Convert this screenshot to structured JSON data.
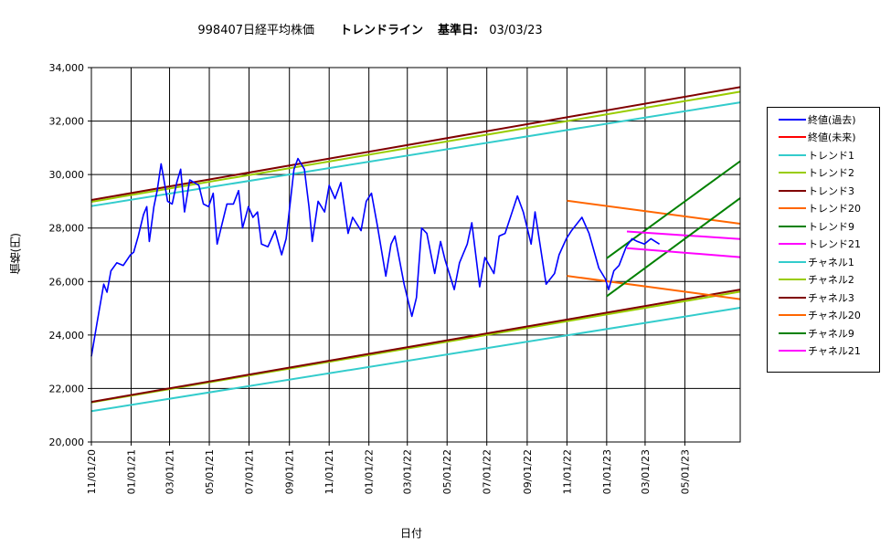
{
  "header": {
    "code_name": "998407日経平均株価",
    "title": "トレンドライン",
    "base_label": "基準日:",
    "base_date": "03/03/23"
  },
  "chart_data": {
    "type": "line",
    "title": "998407日経平均株価 トレンドライン 基準日: 03/03/23",
    "xlabel": "日付",
    "ylabel": "価格(円)",
    "ylim": [
      20000,
      34000
    ],
    "y_ticks": [
      20000,
      22000,
      24000,
      26000,
      28000,
      30000,
      32000,
      34000
    ],
    "y_tick_labels": [
      "20,000",
      "22,000",
      "24,000",
      "26,000",
      "28,000",
      "30,000",
      "32,000",
      "34,000"
    ],
    "x_range": [
      "2020-11-01",
      "2023-07-25"
    ],
    "x_ticks": [
      "2020-11-01",
      "2021-01-01",
      "2021-03-01",
      "2021-05-01",
      "2021-07-01",
      "2021-09-01",
      "2021-11-01",
      "2022-01-01",
      "2022-03-01",
      "2022-05-01",
      "2022-07-01",
      "2022-09-01",
      "2022-11-01",
      "2023-01-01",
      "2023-03-01",
      "2023-05-01"
    ],
    "x_tick_labels": [
      "11/01/20",
      "01/01/21",
      "03/01/21",
      "05/01/21",
      "07/01/21",
      "09/01/21",
      "11/01/21",
      "01/01/22",
      "03/01/22",
      "05/01/22",
      "07/01/22",
      "09/01/22",
      "11/01/22",
      "01/01/23",
      "03/01/23",
      "05/01/23"
    ],
    "grid": true,
    "legend_position": "right",
    "series": [
      {
        "name": "終値(過去)",
        "color": "#0000ff",
        "points": [
          [
            "2020-11-01",
            23200
          ],
          [
            "2020-11-10",
            24500
          ],
          [
            "2020-11-20",
            25900
          ],
          [
            "2020-11-25",
            25600
          ],
          [
            "2020-12-01",
            26400
          ],
          [
            "2020-12-10",
            26700
          ],
          [
            "2020-12-20",
            26600
          ],
          [
            "2020-12-31",
            27000
          ],
          [
            "2021-01-05",
            27100
          ],
          [
            "2021-01-12",
            27700
          ],
          [
            "2021-01-20",
            28500
          ],
          [
            "2021-01-25",
            28800
          ],
          [
            "2021-01-29",
            27500
          ],
          [
            "2021-02-05",
            28800
          ],
          [
            "2021-02-10",
            29400
          ],
          [
            "2021-02-16",
            30400
          ],
          [
            "2021-02-19",
            30000
          ],
          [
            "2021-02-26",
            29000
          ],
          [
            "2021-03-05",
            28900
          ],
          [
            "2021-03-12",
            29700
          ],
          [
            "2021-03-18",
            30200
          ],
          [
            "2021-03-24",
            28600
          ],
          [
            "2021-04-01",
            29800
          ],
          [
            "2021-04-08",
            29700
          ],
          [
            "2021-04-15",
            29600
          ],
          [
            "2021-04-22",
            28900
          ],
          [
            "2021-04-30",
            28800
          ],
          [
            "2021-05-07",
            29300
          ],
          [
            "2021-05-13",
            27400
          ],
          [
            "2021-05-20",
            28100
          ],
          [
            "2021-05-28",
            28900
          ],
          [
            "2021-06-07",
            28900
          ],
          [
            "2021-06-15",
            29400
          ],
          [
            "2021-06-21",
            28000
          ],
          [
            "2021-06-30",
            28800
          ],
          [
            "2021-07-07",
            28400
          ],
          [
            "2021-07-14",
            28600
          ],
          [
            "2021-07-20",
            27400
          ],
          [
            "2021-07-30",
            27300
          ],
          [
            "2021-08-10",
            27900
          ],
          [
            "2021-08-20",
            27000
          ],
          [
            "2021-08-27",
            27600
          ],
          [
            "2021-09-03",
            29100
          ],
          [
            "2021-09-08",
            30200
          ],
          [
            "2021-09-14",
            30600
          ],
          [
            "2021-09-24",
            30200
          ],
          [
            "2021-10-01",
            28800
          ],
          [
            "2021-10-06",
            27500
          ],
          [
            "2021-10-15",
            29000
          ],
          [
            "2021-10-25",
            28600
          ],
          [
            "2021-11-01",
            29600
          ],
          [
            "2021-11-10",
            29100
          ],
          [
            "2021-11-19",
            29700
          ],
          [
            "2021-11-30",
            27800
          ],
          [
            "2021-12-07",
            28400
          ],
          [
            "2021-12-20",
            27900
          ],
          [
            "2021-12-28",
            29000
          ],
          [
            "2022-01-05",
            29300
          ],
          [
            "2022-01-14",
            28100
          ],
          [
            "2022-01-27",
            26200
          ],
          [
            "2022-02-04",
            27400
          ],
          [
            "2022-02-10",
            27700
          ],
          [
            "2022-02-24",
            25900
          ],
          [
            "2022-03-08",
            24700
          ],
          [
            "2022-03-15",
            25400
          ],
          [
            "2022-03-23",
            28000
          ],
          [
            "2022-03-31",
            27800
          ],
          [
            "2022-04-12",
            26300
          ],
          [
            "2022-04-21",
            27500
          ],
          [
            "2022-04-28",
            26800
          ],
          [
            "2022-05-12",
            25700
          ],
          [
            "2022-05-20",
            26700
          ],
          [
            "2022-06-01",
            27400
          ],
          [
            "2022-06-08",
            28200
          ],
          [
            "2022-06-20",
            25800
          ],
          [
            "2022-06-28",
            26900
          ],
          [
            "2022-07-12",
            26300
          ],
          [
            "2022-07-20",
            27700
          ],
          [
            "2022-07-29",
            27800
          ],
          [
            "2022-08-17",
            29200
          ],
          [
            "2022-08-26",
            28600
          ],
          [
            "2022-09-07",
            27400
          ],
          [
            "2022-09-13",
            28600
          ],
          [
            "2022-09-30",
            25900
          ],
          [
            "2022-10-13",
            26300
          ],
          [
            "2022-10-20",
            27000
          ],
          [
            "2022-10-31",
            27600
          ],
          [
            "2022-11-08",
            27900
          ],
          [
            "2022-11-24",
            28400
          ],
          [
            "2022-12-05",
            27800
          ],
          [
            "2022-12-20",
            26500
          ],
          [
            "2022-12-30",
            26100
          ],
          [
            "2023-01-04",
            25700
          ],
          [
            "2023-01-12",
            26400
          ],
          [
            "2023-01-20",
            26600
          ],
          [
            "2023-01-31",
            27300
          ],
          [
            "2023-02-09",
            27600
          ],
          [
            "2023-02-17",
            27500
          ],
          [
            "2023-02-28",
            27400
          ],
          [
            "2023-03-10",
            27600
          ],
          [
            "2023-03-23",
            27400
          ]
        ]
      },
      {
        "name": "終値(未来)",
        "color": "#ff0000",
        "points": []
      },
      {
        "name": "トレンド1",
        "color": "#33cccc",
        "points": [
          [
            "2020-11-01",
            28820
          ],
          [
            "2023-07-25",
            32700
          ]
        ]
      },
      {
        "name": "トレンド2",
        "color": "#99cc00",
        "points": [
          [
            "2020-11-01",
            28980
          ],
          [
            "2023-07-25",
            33100
          ]
        ]
      },
      {
        "name": "トレンド3",
        "color": "#800000",
        "points": [
          [
            "2020-11-01",
            29050
          ],
          [
            "2023-07-25",
            33270
          ]
        ]
      },
      {
        "name": "トレンド20",
        "color": "#ff6600",
        "points": [
          [
            "2022-11-01",
            29020
          ],
          [
            "2023-07-25",
            28160
          ]
        ]
      },
      {
        "name": "トレンド9",
        "color": "#008000",
        "points": [
          [
            "2023-01-01",
            26870
          ],
          [
            "2023-07-25",
            30500
          ]
        ]
      },
      {
        "name": "トレンド21",
        "color": "#ff00ff",
        "points": [
          [
            "2023-02-01",
            27870
          ],
          [
            "2023-07-25",
            27590
          ]
        ]
      },
      {
        "name": "チャネル1",
        "color": "#33cccc",
        "points": [
          [
            "2020-11-01",
            21150
          ],
          [
            "2023-07-25",
            25020
          ]
        ]
      },
      {
        "name": "チャネル2",
        "color": "#99cc00",
        "points": [
          [
            "2020-11-01",
            21480
          ],
          [
            "2023-07-25",
            25620
          ]
        ]
      },
      {
        "name": "チャネル3",
        "color": "#800000",
        "points": [
          [
            "2020-11-01",
            21500
          ],
          [
            "2023-07-25",
            25700
          ]
        ]
      },
      {
        "name": "チャネル20",
        "color": "#ff6600",
        "points": [
          [
            "2022-11-01",
            26210
          ],
          [
            "2023-07-25",
            25340
          ]
        ]
      },
      {
        "name": "チャネル9",
        "color": "#008000",
        "points": [
          [
            "2023-01-01",
            25450
          ],
          [
            "2023-07-25",
            29120
          ]
        ]
      },
      {
        "name": "チャネル21",
        "color": "#ff00ff",
        "points": [
          [
            "2023-02-01",
            27250
          ],
          [
            "2023-07-25",
            26910
          ]
        ]
      }
    ]
  }
}
